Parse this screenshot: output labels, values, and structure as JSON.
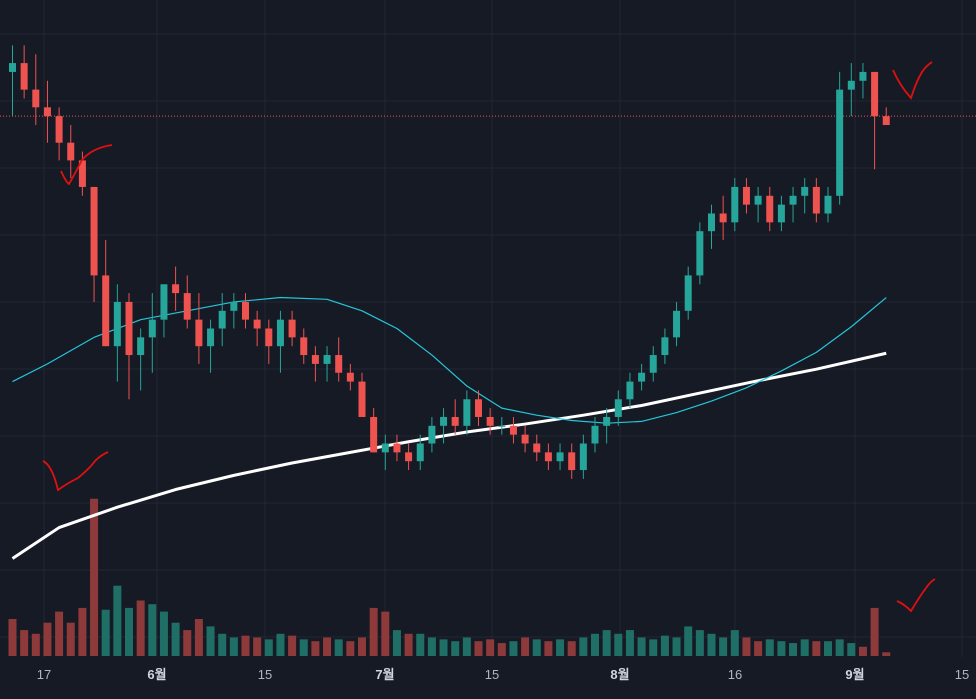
{
  "chart_data": {
    "type": "candlestick",
    "title": "",
    "xlabel": "",
    "ylabel": "",
    "x_ticks": [
      {
        "label": "17",
        "bold": false
      },
      {
        "label": "6월",
        "bold": true
      },
      {
        "label": "15",
        "bold": false
      },
      {
        "label": "7월",
        "bold": true
      },
      {
        "label": "15",
        "bold": false
      },
      {
        "label": "8월",
        "bold": true
      },
      {
        "label": "16",
        "bold": false
      },
      {
        "label": "9월",
        "bold": true
      },
      {
        "label": "15",
        "bold": false
      }
    ],
    "reference_level": 100,
    "ylim": [
      40,
      112
    ],
    "grid": true,
    "colors": {
      "background": "#161a25",
      "grid": "#232733",
      "up": "#26a69a",
      "down": "#ef5350",
      "ma_short": "#26c6da",
      "ma_long": "#ffffff",
      "reference_line": "#ef5350",
      "annotation": "#e01010",
      "volume_up": "#1f6f67",
      "volume_down": "#8e3a3a"
    },
    "candles": [
      [
        1,
        105,
        108,
        100,
        106
      ],
      [
        2,
        106,
        108,
        102,
        103
      ],
      [
        3,
        103,
        107,
        99,
        101
      ],
      [
        4,
        101,
        104,
        97,
        100
      ],
      [
        5,
        100,
        101,
        95,
        97
      ],
      [
        6,
        97,
        99,
        93,
        95
      ],
      [
        7,
        95,
        96,
        91,
        92
      ],
      [
        8,
        92,
        92,
        79,
        82
      ],
      [
        9,
        82,
        86,
        74,
        74
      ],
      [
        10,
        74,
        81,
        70,
        79
      ],
      [
        11,
        79,
        80,
        68,
        73
      ],
      [
        12,
        73,
        76,
        69,
        75
      ],
      [
        13,
        75,
        80,
        71,
        77
      ],
      [
        14,
        77,
        81,
        75,
        81
      ],
      [
        15,
        81,
        83,
        78,
        80
      ],
      [
        16,
        80,
        82,
        76,
        77
      ],
      [
        17,
        77,
        80,
        72,
        74
      ],
      [
        18,
        74,
        77,
        71,
        76
      ],
      [
        19,
        76,
        80,
        74,
        78
      ],
      [
        20,
        78,
        80,
        76,
        79
      ],
      [
        21,
        79,
        80,
        76,
        77
      ],
      [
        22,
        77,
        78,
        74,
        76
      ],
      [
        23,
        76,
        77,
        72,
        74
      ],
      [
        24,
        74,
        78,
        71,
        77
      ],
      [
        25,
        77,
        78,
        74,
        75
      ],
      [
        26,
        75,
        76,
        72,
        73
      ],
      [
        27,
        73,
        74,
        70,
        72
      ],
      [
        28,
        72,
        74,
        70,
        73
      ],
      [
        29,
        73,
        75,
        70,
        71
      ],
      [
        30,
        71,
        72,
        69,
        70
      ],
      [
        31,
        70,
        71,
        66,
        66
      ],
      [
        32,
        66,
        67,
        62,
        62
      ],
      [
        33,
        62,
        64,
        60,
        63
      ],
      [
        34,
        63,
        64,
        61,
        62
      ],
      [
        35,
        62,
        63,
        60,
        61
      ],
      [
        36,
        61,
        64,
        60,
        63
      ],
      [
        37,
        63,
        66,
        62,
        65
      ],
      [
        38,
        65,
        67,
        63,
        66
      ],
      [
        39,
        66,
        68,
        64,
        65
      ],
      [
        40,
        65,
        69,
        64,
        68
      ],
      [
        41,
        68,
        69,
        65,
        66
      ],
      [
        42,
        66,
        67,
        64,
        65
      ],
      [
        43,
        65,
        66,
        64,
        65
      ],
      [
        44,
        65,
        66,
        63,
        64
      ],
      [
        45,
        64,
        65,
        62,
        63
      ],
      [
        46,
        63,
        64,
        61,
        62
      ],
      [
        47,
        62,
        63,
        60,
        61
      ],
      [
        48,
        61,
        63,
        60,
        62
      ],
      [
        49,
        62,
        63,
        59,
        60
      ],
      [
        50,
        60,
        64,
        59,
        63
      ],
      [
        51,
        63,
        66,
        62,
        65
      ],
      [
        52,
        65,
        67,
        63,
        66
      ],
      [
        53,
        66,
        69,
        65,
        68
      ],
      [
        54,
        68,
        71,
        67,
        70
      ],
      [
        55,
        70,
        72,
        69,
        71
      ],
      [
        56,
        71,
        74,
        70,
        73
      ],
      [
        57,
        73,
        76,
        72,
        75
      ],
      [
        58,
        75,
        79,
        74,
        78
      ],
      [
        59,
        78,
        83,
        77,
        82
      ],
      [
        60,
        82,
        88,
        81,
        87
      ],
      [
        61,
        87,
        90,
        85,
        89
      ],
      [
        62,
        89,
        91,
        86,
        88
      ],
      [
        63,
        88,
        93,
        87,
        92
      ],
      [
        64,
        92,
        93,
        89,
        90
      ],
      [
        65,
        90,
        92,
        88,
        91
      ],
      [
        66,
        91,
        92,
        87,
        88
      ],
      [
        67,
        88,
        91,
        87,
        90
      ],
      [
        68,
        90,
        92,
        88,
        91
      ],
      [
        69,
        91,
        93,
        89,
        92
      ],
      [
        70,
        92,
        93,
        88,
        89
      ],
      [
        71,
        89,
        92,
        88,
        91
      ],
      [
        72,
        91,
        105,
        90,
        103
      ],
      [
        73,
        103,
        106,
        100,
        104
      ],
      [
        74,
        104,
        106,
        102,
        105
      ],
      [
        75,
        105,
        105,
        94,
        100
      ],
      [
        76,
        100,
        101,
        99,
        99
      ]
    ],
    "volumes": [
      [
        1,
        20,
        "down"
      ],
      [
        2,
        14,
        "down"
      ],
      [
        3,
        12,
        "down"
      ],
      [
        4,
        18,
        "down"
      ],
      [
        5,
        24,
        "down"
      ],
      [
        6,
        18,
        "down"
      ],
      [
        7,
        26,
        "down"
      ],
      [
        8,
        85,
        "down"
      ],
      [
        9,
        25,
        "up"
      ],
      [
        10,
        38,
        "up"
      ],
      [
        11,
        26,
        "up"
      ],
      [
        12,
        30,
        "down"
      ],
      [
        13,
        28,
        "up"
      ],
      [
        14,
        24,
        "up"
      ],
      [
        15,
        18,
        "up"
      ],
      [
        16,
        14,
        "down"
      ],
      [
        17,
        20,
        "down"
      ],
      [
        18,
        16,
        "up"
      ],
      [
        19,
        12,
        "up"
      ],
      [
        20,
        10,
        "up"
      ],
      [
        21,
        11,
        "down"
      ],
      [
        22,
        10,
        "down"
      ],
      [
        23,
        9,
        "up"
      ],
      [
        24,
        12,
        "up"
      ],
      [
        25,
        11,
        "down"
      ],
      [
        26,
        9,
        "up"
      ],
      [
        27,
        8,
        "down"
      ],
      [
        28,
        10,
        "down"
      ],
      [
        29,
        9,
        "up"
      ],
      [
        30,
        8,
        "down"
      ],
      [
        31,
        10,
        "down"
      ],
      [
        32,
        26,
        "down"
      ],
      [
        33,
        24,
        "down"
      ],
      [
        34,
        14,
        "up"
      ],
      [
        35,
        12,
        "down"
      ],
      [
        36,
        12,
        "up"
      ],
      [
        37,
        10,
        "up"
      ],
      [
        38,
        9,
        "up"
      ],
      [
        39,
        8,
        "up"
      ],
      [
        40,
        10,
        "up"
      ],
      [
        41,
        8,
        "down"
      ],
      [
        42,
        9,
        "down"
      ],
      [
        43,
        7,
        "down"
      ],
      [
        44,
        8,
        "up"
      ],
      [
        45,
        10,
        "down"
      ],
      [
        46,
        9,
        "up"
      ],
      [
        47,
        8,
        "down"
      ],
      [
        48,
        9,
        "up"
      ],
      [
        49,
        8,
        "down"
      ],
      [
        50,
        10,
        "up"
      ],
      [
        51,
        12,
        "up"
      ],
      [
        52,
        14,
        "up"
      ],
      [
        53,
        12,
        "up"
      ],
      [
        54,
        14,
        "up"
      ],
      [
        55,
        10,
        "up"
      ],
      [
        56,
        9,
        "up"
      ],
      [
        57,
        11,
        "up"
      ],
      [
        58,
        10,
        "up"
      ],
      [
        59,
        16,
        "up"
      ],
      [
        60,
        14,
        "up"
      ],
      [
        61,
        12,
        "up"
      ],
      [
        62,
        10,
        "up"
      ],
      [
        63,
        14,
        "up"
      ],
      [
        64,
        10,
        "down"
      ],
      [
        65,
        8,
        "down"
      ],
      [
        66,
        9,
        "up"
      ],
      [
        67,
        8,
        "up"
      ],
      [
        68,
        7,
        "up"
      ],
      [
        69,
        9,
        "up"
      ],
      [
        70,
        8,
        "down"
      ],
      [
        71,
        8,
        "up"
      ],
      [
        72,
        9,
        "up"
      ],
      [
        73,
        7,
        "up"
      ],
      [
        74,
        5,
        "down"
      ],
      [
        75,
        26,
        "down"
      ],
      [
        76,
        2,
        "down"
      ]
    ],
    "ma_short": [
      [
        1,
        70
      ],
      [
        4,
        72
      ],
      [
        8,
        75
      ],
      [
        12,
        77
      ],
      [
        16,
        78
      ],
      [
        20,
        79
      ],
      [
        24,
        79.5
      ],
      [
        28,
        79.3
      ],
      [
        31,
        78
      ],
      [
        34,
        76
      ],
      [
        37,
        73
      ],
      [
        40,
        69.5
      ],
      [
        43,
        67
      ],
      [
        46,
        66.2
      ],
      [
        49,
        65.6
      ],
      [
        52,
        65.3
      ],
      [
        55,
        65.5
      ],
      [
        58,
        66.5
      ],
      [
        61,
        67.8
      ],
      [
        64,
        69.3
      ],
      [
        67,
        71.2
      ],
      [
        70,
        73.3
      ],
      [
        73,
        76.2
      ],
      [
        76,
        79.5
      ]
    ],
    "ma_long": [
      [
        1,
        50
      ],
      [
        5,
        53.5
      ],
      [
        10,
        55.8
      ],
      [
        15,
        57.8
      ],
      [
        20,
        59.4
      ],
      [
        25,
        60.8
      ],
      [
        30,
        62
      ],
      [
        35,
        63.2
      ],
      [
        40,
        64.3
      ],
      [
        45,
        65.2
      ],
      [
        50,
        66.2
      ],
      [
        55,
        67.3
      ],
      [
        60,
        68.7
      ],
      [
        65,
        70.1
      ],
      [
        70,
        71.4
      ],
      [
        76,
        73.2
      ]
    ]
  }
}
